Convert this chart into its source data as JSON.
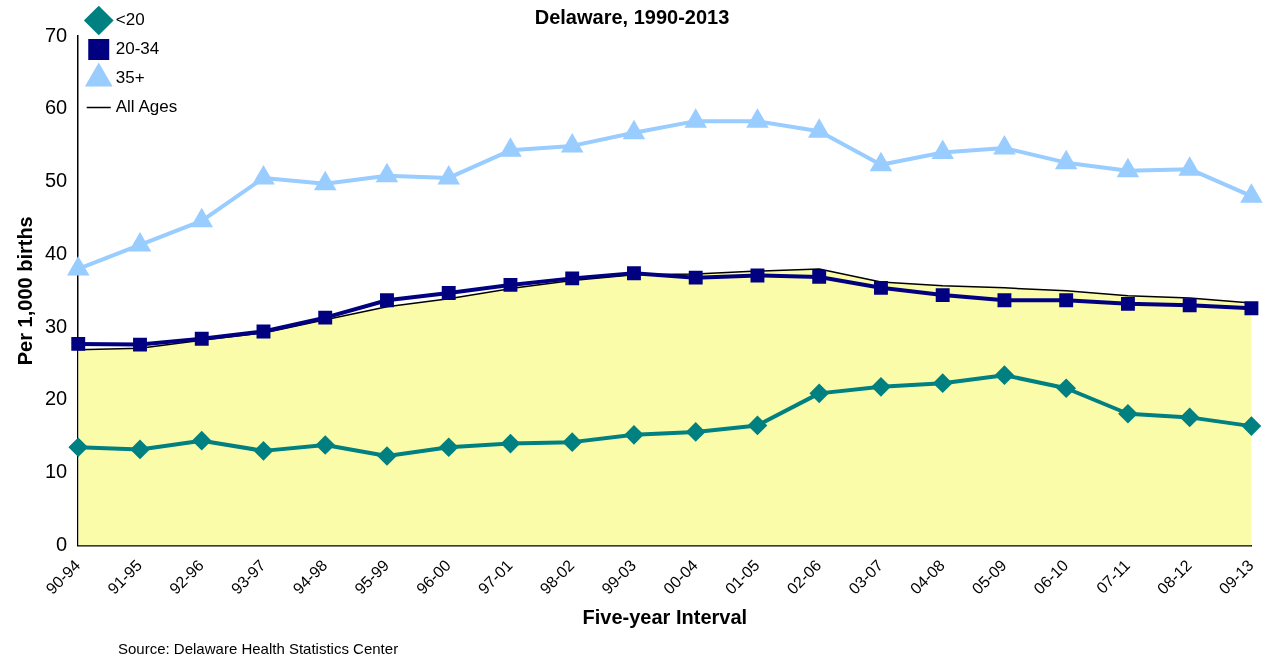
{
  "chart_data": {
    "type": "line",
    "title": "Delaware, 1990-2013",
    "xlabel": "Five-year Interval",
    "ylabel": "Per 1,000 births",
    "annotations": [
      "Source: Delaware Health Statistics Center"
    ],
    "categories": [
      "90-94",
      "91-95",
      "92-96",
      "93-97",
      "94-98",
      "95-99",
      "96-00",
      "97-01",
      "98-02",
      "99-03",
      "00-04",
      "01-05",
      "02-06",
      "03-07",
      "04-08",
      "05-09",
      "06-10",
      "07-11",
      "08-12",
      "09-13"
    ],
    "series": [
      {
        "name": "All Ages",
        "type": "area",
        "color": "#fafcaa",
        "marker": "none",
        "values": [
          26.9,
          27.1,
          28.2,
          29.2,
          31.0,
          32.8,
          33.9,
          35.3,
          36.4,
          37.2,
          37.3,
          37.7,
          38.0,
          36.2,
          35.7,
          35.4,
          35.0,
          34.3,
          34.0,
          33.3
        ]
      },
      {
        "name": "<20",
        "type": "line",
        "color": "#008080",
        "marker": "diamond",
        "values": [
          13.5,
          13.2,
          14.4,
          13.0,
          13.8,
          12.3,
          13.5,
          14.0,
          14.2,
          15.2,
          15.6,
          16.5,
          20.9,
          21.8,
          22.3,
          23.4,
          21.6,
          18.1,
          17.6,
          16.4
        ]
      },
      {
        "name": "20-34",
        "type": "line",
        "color": "#000080",
        "marker": "square",
        "values": [
          27.7,
          27.6,
          28.4,
          29.4,
          31.3,
          33.7,
          34.7,
          35.8,
          36.7,
          37.4,
          36.8,
          37.1,
          36.9,
          35.4,
          34.4,
          33.7,
          33.7,
          33.2,
          33.0,
          32.6
        ]
      },
      {
        "name": "35+",
        "type": "line",
        "color": "#99ccff",
        "marker": "triangle",
        "values": [
          38.0,
          41.3,
          44.6,
          50.5,
          49.7,
          50.8,
          50.5,
          54.3,
          54.9,
          56.7,
          58.3,
          58.3,
          56.9,
          52.3,
          54.0,
          54.6,
          52.6,
          51.5,
          51.7,
          48.0
        ]
      }
    ],
    "ylim": [
      0,
      70
    ],
    "yticks": [
      0,
      10,
      20,
      30,
      40,
      50,
      60,
      70
    ],
    "grid": false,
    "legend": "top left"
  }
}
